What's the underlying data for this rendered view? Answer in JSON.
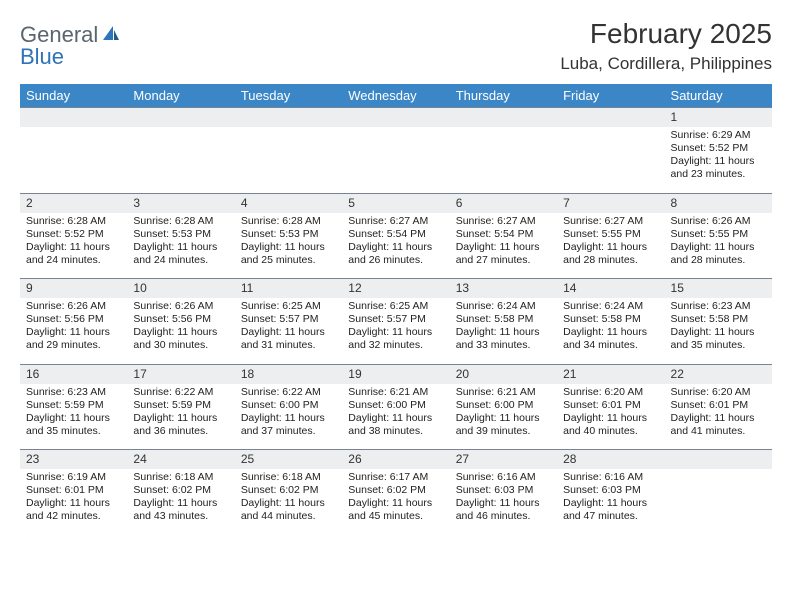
{
  "logo": {
    "text1": "General",
    "text2": "Blue"
  },
  "title": "February 2025",
  "location": "Luba, Cordillera, Philippines",
  "colors": {
    "header_bg": "#3b86c7",
    "header_text": "#ffffff",
    "daynum_bg": "#eceeef",
    "daynum_border": "#7a8490",
    "logo_gray": "#5a6570",
    "logo_blue": "#2f73b8",
    "text": "#222222",
    "page_bg": "#ffffff"
  },
  "typography": {
    "title_fontsize": 28,
    "location_fontsize": 17,
    "dayheader_fontsize": 13,
    "daynum_fontsize": 12,
    "body_fontsize": 10.5
  },
  "day_headers": [
    "Sunday",
    "Monday",
    "Tuesday",
    "Wednesday",
    "Thursday",
    "Friday",
    "Saturday"
  ],
  "weeks": [
    {
      "nums": [
        "",
        "",
        "",
        "",
        "",
        "",
        "1"
      ],
      "cells": [
        {
          "empty": true
        },
        {
          "empty": true
        },
        {
          "empty": true
        },
        {
          "empty": true
        },
        {
          "empty": true
        },
        {
          "empty": true
        },
        {
          "sunrise": "Sunrise: 6:29 AM",
          "sunset": "Sunset: 5:52 PM",
          "day1": "Daylight: 11 hours",
          "day2": "and 23 minutes."
        }
      ]
    },
    {
      "nums": [
        "2",
        "3",
        "4",
        "5",
        "6",
        "7",
        "8"
      ],
      "cells": [
        {
          "sunrise": "Sunrise: 6:28 AM",
          "sunset": "Sunset: 5:52 PM",
          "day1": "Daylight: 11 hours",
          "day2": "and 24 minutes."
        },
        {
          "sunrise": "Sunrise: 6:28 AM",
          "sunset": "Sunset: 5:53 PM",
          "day1": "Daylight: 11 hours",
          "day2": "and 24 minutes."
        },
        {
          "sunrise": "Sunrise: 6:28 AM",
          "sunset": "Sunset: 5:53 PM",
          "day1": "Daylight: 11 hours",
          "day2": "and 25 minutes."
        },
        {
          "sunrise": "Sunrise: 6:27 AM",
          "sunset": "Sunset: 5:54 PM",
          "day1": "Daylight: 11 hours",
          "day2": "and 26 minutes."
        },
        {
          "sunrise": "Sunrise: 6:27 AM",
          "sunset": "Sunset: 5:54 PM",
          "day1": "Daylight: 11 hours",
          "day2": "and 27 minutes."
        },
        {
          "sunrise": "Sunrise: 6:27 AM",
          "sunset": "Sunset: 5:55 PM",
          "day1": "Daylight: 11 hours",
          "day2": "and 28 minutes."
        },
        {
          "sunrise": "Sunrise: 6:26 AM",
          "sunset": "Sunset: 5:55 PM",
          "day1": "Daylight: 11 hours",
          "day2": "and 28 minutes."
        }
      ]
    },
    {
      "nums": [
        "9",
        "10",
        "11",
        "12",
        "13",
        "14",
        "15"
      ],
      "cells": [
        {
          "sunrise": "Sunrise: 6:26 AM",
          "sunset": "Sunset: 5:56 PM",
          "day1": "Daylight: 11 hours",
          "day2": "and 29 minutes."
        },
        {
          "sunrise": "Sunrise: 6:26 AM",
          "sunset": "Sunset: 5:56 PM",
          "day1": "Daylight: 11 hours",
          "day2": "and 30 minutes."
        },
        {
          "sunrise": "Sunrise: 6:25 AM",
          "sunset": "Sunset: 5:57 PM",
          "day1": "Daylight: 11 hours",
          "day2": "and 31 minutes."
        },
        {
          "sunrise": "Sunrise: 6:25 AM",
          "sunset": "Sunset: 5:57 PM",
          "day1": "Daylight: 11 hours",
          "day2": "and 32 minutes."
        },
        {
          "sunrise": "Sunrise: 6:24 AM",
          "sunset": "Sunset: 5:58 PM",
          "day1": "Daylight: 11 hours",
          "day2": "and 33 minutes."
        },
        {
          "sunrise": "Sunrise: 6:24 AM",
          "sunset": "Sunset: 5:58 PM",
          "day1": "Daylight: 11 hours",
          "day2": "and 34 minutes."
        },
        {
          "sunrise": "Sunrise: 6:23 AM",
          "sunset": "Sunset: 5:58 PM",
          "day1": "Daylight: 11 hours",
          "day2": "and 35 minutes."
        }
      ]
    },
    {
      "nums": [
        "16",
        "17",
        "18",
        "19",
        "20",
        "21",
        "22"
      ],
      "cells": [
        {
          "sunrise": "Sunrise: 6:23 AM",
          "sunset": "Sunset: 5:59 PM",
          "day1": "Daylight: 11 hours",
          "day2": "and 35 minutes."
        },
        {
          "sunrise": "Sunrise: 6:22 AM",
          "sunset": "Sunset: 5:59 PM",
          "day1": "Daylight: 11 hours",
          "day2": "and 36 minutes."
        },
        {
          "sunrise": "Sunrise: 6:22 AM",
          "sunset": "Sunset: 6:00 PM",
          "day1": "Daylight: 11 hours",
          "day2": "and 37 minutes."
        },
        {
          "sunrise": "Sunrise: 6:21 AM",
          "sunset": "Sunset: 6:00 PM",
          "day1": "Daylight: 11 hours",
          "day2": "and 38 minutes."
        },
        {
          "sunrise": "Sunrise: 6:21 AM",
          "sunset": "Sunset: 6:00 PM",
          "day1": "Daylight: 11 hours",
          "day2": "and 39 minutes."
        },
        {
          "sunrise": "Sunrise: 6:20 AM",
          "sunset": "Sunset: 6:01 PM",
          "day1": "Daylight: 11 hours",
          "day2": "and 40 minutes."
        },
        {
          "sunrise": "Sunrise: 6:20 AM",
          "sunset": "Sunset: 6:01 PM",
          "day1": "Daylight: 11 hours",
          "day2": "and 41 minutes."
        }
      ]
    },
    {
      "nums": [
        "23",
        "24",
        "25",
        "26",
        "27",
        "28",
        ""
      ],
      "cells": [
        {
          "sunrise": "Sunrise: 6:19 AM",
          "sunset": "Sunset: 6:01 PM",
          "day1": "Daylight: 11 hours",
          "day2": "and 42 minutes."
        },
        {
          "sunrise": "Sunrise: 6:18 AM",
          "sunset": "Sunset: 6:02 PM",
          "day1": "Daylight: 11 hours",
          "day2": "and 43 minutes."
        },
        {
          "sunrise": "Sunrise: 6:18 AM",
          "sunset": "Sunset: 6:02 PM",
          "day1": "Daylight: 11 hours",
          "day2": "and 44 minutes."
        },
        {
          "sunrise": "Sunrise: 6:17 AM",
          "sunset": "Sunset: 6:02 PM",
          "day1": "Daylight: 11 hours",
          "day2": "and 45 minutes."
        },
        {
          "sunrise": "Sunrise: 6:16 AM",
          "sunset": "Sunset: 6:03 PM",
          "day1": "Daylight: 11 hours",
          "day2": "and 46 minutes."
        },
        {
          "sunrise": "Sunrise: 6:16 AM",
          "sunset": "Sunset: 6:03 PM",
          "day1": "Daylight: 11 hours",
          "day2": "and 47 minutes."
        },
        {
          "empty": true
        }
      ]
    }
  ]
}
